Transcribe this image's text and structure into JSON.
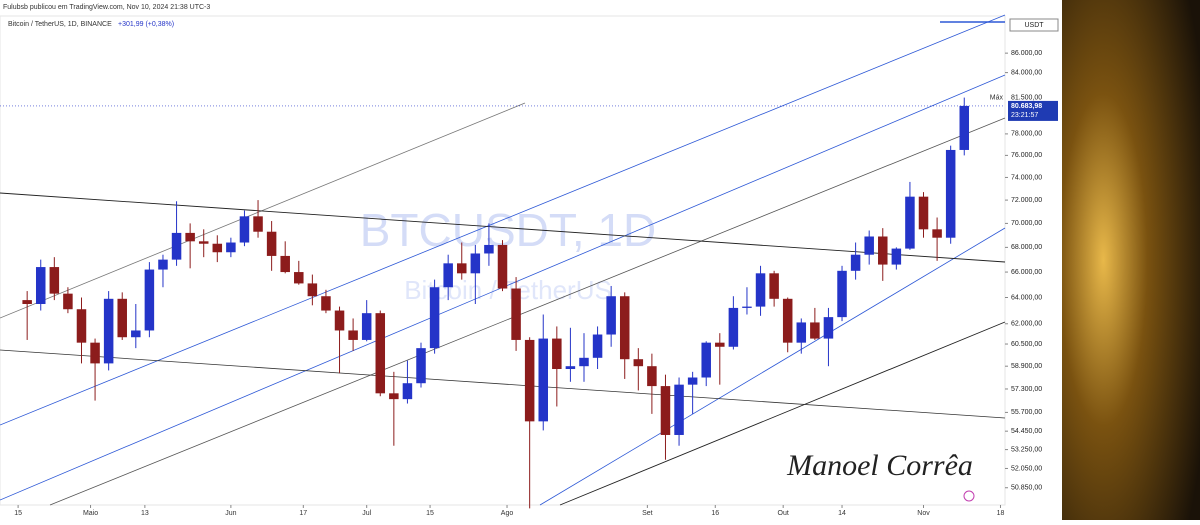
{
  "header": "Fulubsb publicou em TradingView.com, Nov 10, 2024 21:38 UTC-3",
  "chart_data": {
    "type": "candlestick",
    "legend": "Bitcoin / TetherUS, 1D, BINANCE",
    "change": "+301,99 (+0,38%)",
    "watermark": "BTCUSDT, 1D",
    "watermark_subtitle": "Bitcoin / TetherUS",
    "signature": "Manoel Corrêa",
    "currency": "USDT",
    "log_scale": true,
    "up_color": "#2434c8",
    "down_color": "#8c1c1c",
    "x": [
      "2024-04-17",
      "2024-04-20",
      "2024-04-23",
      "2024-04-26",
      "2024-04-29",
      "2024-05-02",
      "2024-05-05",
      "2024-05-08",
      "2024-05-11",
      "2024-05-14",
      "2024-05-17",
      "2024-05-20",
      "2024-05-23",
      "2024-05-26",
      "2024-05-29",
      "2024-06-01",
      "2024-06-04",
      "2024-06-07",
      "2024-06-10",
      "2024-06-13",
      "2024-06-16",
      "2024-06-19",
      "2024-06-22",
      "2024-06-25",
      "2024-06-28",
      "2024-07-01",
      "2024-07-04",
      "2024-07-07",
      "2024-07-10",
      "2024-07-13",
      "2024-07-16",
      "2024-07-19",
      "2024-07-22",
      "2024-07-25",
      "2024-07-28",
      "2024-07-31",
      "2024-08-03",
      "2024-08-06",
      "2024-08-09",
      "2024-08-12",
      "2024-08-15",
      "2024-08-18",
      "2024-08-21",
      "2024-08-24",
      "2024-08-27",
      "2024-08-30",
      "2024-09-02",
      "2024-09-05",
      "2024-09-08",
      "2024-09-11",
      "2024-09-14",
      "2024-09-17",
      "2024-09-20",
      "2024-09-23",
      "2024-09-26",
      "2024-09-29",
      "2024-10-02",
      "2024-10-05",
      "2024-10-08",
      "2024-10-11",
      "2024-10-14",
      "2024-10-17",
      "2024-10-20",
      "2024-10-23",
      "2024-10-26",
      "2024-10-29",
      "2024-11-01",
      "2024-11-04",
      "2024-11-07",
      "2024-11-10"
    ],
    "open": [
      63800,
      63500,
      66400,
      64300,
      63100,
      60600,
      59100,
      63900,
      61000,
      61500,
      66200,
      67000,
      69200,
      68500,
      68300,
      67600,
      68400,
      70600,
      69300,
      67300,
      66000,
      65100,
      64100,
      63000,
      61500,
      60800,
      62800,
      57000,
      56600,
      57700,
      60200,
      64800,
      66700,
      65900,
      67500,
      68200,
      64700,
      60800,
      55100,
      60900,
      58700,
      58900,
      59500,
      61200,
      64100,
      59400,
      58900,
      57500,
      54200,
      57600,
      58100,
      60600,
      60300,
      63200,
      63300,
      65900,
      63900,
      60600,
      62100,
      60900,
      62500,
      66100,
      67400,
      68900,
      66600,
      67900,
      72300,
      69500,
      68800,
      76500
    ],
    "high": [
      64500,
      67000,
      67200,
      64800,
      64000,
      60900,
      64500,
      64400,
      63500,
      66800,
      67400,
      71900,
      70000,
      69500,
      69000,
      68800,
      71100,
      72000,
      70200,
      68500,
      66900,
      65800,
      64600,
      63300,
      62400,
      63800,
      63000,
      58500,
      59300,
      60600,
      65400,
      67400,
      68400,
      68200,
      70000,
      68600,
      65600,
      61000,
      62700,
      61800,
      61700,
      61300,
      61800,
      64900,
      64400,
      60200,
      59800,
      58300,
      58100,
      58500,
      60700,
      61300,
      64100,
      64800,
      66500,
      66100,
      64000,
      62400,
      63200,
      63200,
      66500,
      68400,
      69400,
      69600,
      68000,
      73600,
      72700,
      70500,
      76900,
      81500
    ],
    "low": [
      60800,
      63000,
      63800,
      62800,
      59100,
      56500,
      58600,
      60800,
      60200,
      61000,
      64800,
      66500,
      66300,
      67200,
      66800,
      67200,
      68100,
      68800,
      66100,
      65900,
      65000,
      63400,
      62800,
      58400,
      60000,
      60700,
      56800,
      53500,
      56300,
      57400,
      59800,
      63800,
      65400,
      63500,
      66500,
      64500,
      60000,
      49600,
      54500,
      56100,
      57800,
      57800,
      58700,
      60300,
      58000,
      57200,
      55600,
      52600,
      53500,
      55600,
      57500,
      57600,
      60100,
      62700,
      62600,
      63300,
      59900,
      59800,
      60800,
      58900,
      62200,
      65400,
      66600,
      65300,
      66200,
      67800,
      68800,
      66900,
      68300,
      76000
    ],
    "close": [
      63500,
      66400,
      64300,
      63100,
      60600,
      59100,
      63900,
      61000,
      61500,
      66200,
      67000,
      69200,
      68500,
      68300,
      67600,
      68400,
      70600,
      69300,
      67300,
      66000,
      65100,
      64100,
      63000,
      61500,
      60800,
      62800,
      57000,
      56600,
      57700,
      60200,
      64800,
      66700,
      65900,
      67500,
      68200,
      64700,
      60800,
      55100,
      60900,
      58700,
      58900,
      59500,
      61200,
      64100,
      59400,
      58900,
      57500,
      54200,
      57600,
      58100,
      60600,
      60300,
      63200,
      63300,
      65900,
      63900,
      60600,
      62100,
      60900,
      62500,
      66100,
      67400,
      68900,
      66600,
      67900,
      72300,
      69500,
      68800,
      76500,
      80683.98
    ],
    "max_text": "Máx",
    "max_label": {
      "value": 81500,
      "label": "81.500,00"
    },
    "last_price": {
      "value": 80683.98,
      "label": "80.683,98"
    },
    "countdown": "23:21:57",
    "xlim": [
      "2024-04-11",
      "2024-11-19"
    ],
    "xticks": [
      {
        "value": "2024-04-15",
        "label": "15"
      },
      {
        "value": "2024-05-01",
        "label": "Maio"
      },
      {
        "value": "2024-05-13",
        "label": "13"
      },
      {
        "value": "2024-06-01",
        "label": "Jun"
      },
      {
        "value": "2024-06-17",
        "label": "17"
      },
      {
        "value": "2024-07-01",
        "label": "Jul"
      },
      {
        "value": "2024-07-15",
        "label": "15"
      },
      {
        "value": "2024-08-01",
        "label": "Ago"
      },
      {
        "value": "2024-09-01",
        "label": "Set"
      },
      {
        "value": "2024-09-16",
        "label": "16"
      },
      {
        "value": "2024-10-01",
        "label": "Out"
      },
      {
        "value": "2024-10-14",
        "label": "14"
      },
      {
        "value": "2024-11-01",
        "label": "Nov"
      },
      {
        "value": "2024-11-18",
        "label": "18"
      }
    ],
    "ylim": [
      49800,
      89300
    ],
    "yticks": [
      {
        "value": 86000,
        "label": "86.000,00"
      },
      {
        "value": 84000,
        "label": "84.000,00"
      },
      {
        "value": 78000,
        "label": "78.000,00"
      },
      {
        "value": 76000,
        "label": "76.000,00"
      },
      {
        "value": 74000,
        "label": "74.000,00"
      },
      {
        "value": 72000,
        "label": "72.000,00"
      },
      {
        "value": 70000,
        "label": "70.000,00"
      },
      {
        "value": 68000,
        "label": "68.000,00"
      },
      {
        "value": 66000,
        "label": "66.000,00"
      },
      {
        "value": 64000,
        "label": "64.000,00"
      },
      {
        "value": 62000,
        "label": "62.000,00"
      },
      {
        "value": 60500,
        "label": "60.500,00"
      },
      {
        "value": 58900,
        "label": "58.900,00"
      },
      {
        "value": 57300,
        "label": "57.300,00"
      },
      {
        "value": 55700,
        "label": "55.700,00"
      },
      {
        "value": 54450,
        "label": "54.450,00"
      },
      {
        "value": 53250,
        "label": "53.250,00"
      },
      {
        "value": 52050,
        "label": "52.050,00"
      },
      {
        "value": 50850,
        "label": "50.850,00"
      }
    ]
  }
}
